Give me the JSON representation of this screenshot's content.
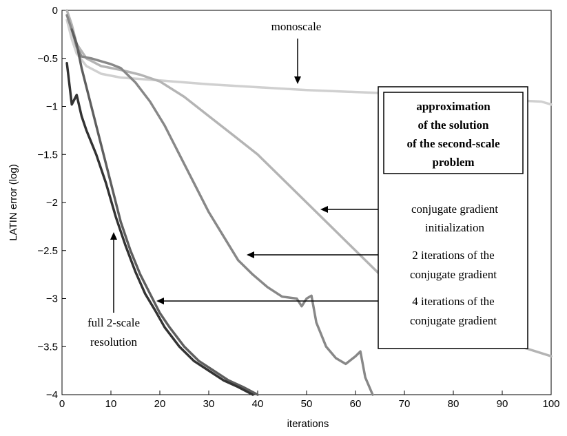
{
  "chart_data": {
    "type": "line",
    "xlabel": "iterations",
    "ylabel": "LATIN error (log)",
    "xlim": [
      0,
      100
    ],
    "ylim": [
      -4,
      0
    ],
    "x_ticks": [
      0,
      10,
      20,
      30,
      40,
      50,
      60,
      70,
      80,
      90,
      100
    ],
    "y_ticks": [
      0,
      -0.5,
      -1,
      -1.5,
      -2,
      -2.5,
      -3,
      -3.5,
      -4
    ],
    "x_tick_labels": [
      "0",
      "10",
      "20",
      "30",
      "40",
      "50",
      "60",
      "70",
      "80",
      "90",
      "100"
    ],
    "y_tick_labels": [
      "0",
      "−0.5",
      "−1",
      "−1.5",
      "−2",
      "−2.5",
      "−3",
      "−3.5",
      "−4"
    ],
    "grid": false,
    "series": [
      {
        "color": "#d0d0d0",
        "x": [
          1,
          2,
          3,
          5,
          8,
          12,
          20,
          30,
          40,
          50,
          60,
          70,
          80,
          90,
          98,
          100
        ],
        "y": [
          -0.1,
          -0.3,
          -0.45,
          -0.58,
          -0.66,
          -0.7,
          -0.73,
          -0.77,
          -0.8,
          -0.83,
          -0.85,
          -0.87,
          -0.9,
          -0.93,
          -0.95,
          -0.98
        ]
      },
      {
        "color": "#b4b4b4",
        "x": [
          1,
          2,
          3,
          5,
          8,
          12,
          16,
          20,
          25,
          30,
          35,
          40,
          45,
          50,
          55,
          60,
          65,
          70,
          75,
          80,
          85,
          90,
          95,
          100
        ],
        "y": [
          0,
          -0.15,
          -0.35,
          -0.5,
          -0.58,
          -0.62,
          -0.67,
          -0.74,
          -0.9,
          -1.1,
          -1.3,
          -1.5,
          -1.75,
          -2.0,
          -2.25,
          -2.5,
          -2.75,
          -2.95,
          -3.1,
          -3.25,
          -3.35,
          -3.45,
          -3.52,
          -3.6
        ]
      },
      {
        "color": "#888888",
        "x": [
          1,
          2,
          3,
          4,
          6,
          8,
          10,
          12,
          15,
          18,
          21,
          24,
          27,
          30,
          33,
          36,
          39,
          42,
          45,
          48,
          49,
          50,
          51,
          52,
          54,
          56,
          58,
          60,
          61,
          62,
          63.5
        ],
        "y": [
          -0.05,
          -0.2,
          -0.38,
          -0.48,
          -0.5,
          -0.53,
          -0.56,
          -0.6,
          -0.75,
          -0.95,
          -1.2,
          -1.5,
          -1.8,
          -2.1,
          -2.35,
          -2.6,
          -2.75,
          -2.88,
          -2.98,
          -3.0,
          -3.08,
          -3.0,
          -2.97,
          -3.25,
          -3.5,
          -3.62,
          -3.68,
          -3.6,
          -3.55,
          -3.82,
          -4.0
        ]
      },
      {
        "color": "#5e5e5e",
        "x": [
          2,
          3,
          4,
          6,
          8,
          10,
          12,
          14,
          16,
          18,
          20,
          22,
          25,
          28,
          31,
          34,
          37,
          40
        ],
        "y": [
          -0.2,
          -0.35,
          -0.6,
          -1.0,
          -1.4,
          -1.8,
          -2.2,
          -2.5,
          -2.75,
          -2.95,
          -3.15,
          -3.3,
          -3.5,
          -3.65,
          -3.75,
          -3.85,
          -3.92,
          -4.0
        ]
      },
      {
        "color": "#333333",
        "x": [
          1,
          2,
          3,
          4,
          5,
          7,
          9,
          11,
          13,
          15,
          17,
          19,
          21,
          24,
          27,
          30,
          33,
          36,
          39
        ],
        "y": [
          -0.55,
          -0.98,
          -0.88,
          -1.1,
          -1.25,
          -1.5,
          -1.8,
          -2.15,
          -2.45,
          -2.72,
          -2.95,
          -3.12,
          -3.3,
          -3.5,
          -3.65,
          -3.75,
          -3.85,
          -3.92,
          -4.0
        ]
      }
    ],
    "annotations": [
      {
        "text": "monoscale"
      },
      {
        "text": "conjugate gradient initialization",
        "lines": [
          "conjugate gradient",
          "initialization"
        ]
      },
      {
        "text": "2 iterations of the conjugate gradient",
        "lines": [
          "2 iterations of the",
          "conjugate gradient"
        ]
      },
      {
        "text": "4 iterations of the conjugate gradient",
        "lines": [
          "4 iterations of the",
          "conjugate gradient"
        ]
      },
      {
        "text": "full 2-scale resolution",
        "lines": [
          "full 2-scale",
          "resolution"
        ]
      }
    ],
    "box_title_lines": [
      "approximation",
      "of the solution",
      "of the second-scale",
      "problem"
    ]
  }
}
